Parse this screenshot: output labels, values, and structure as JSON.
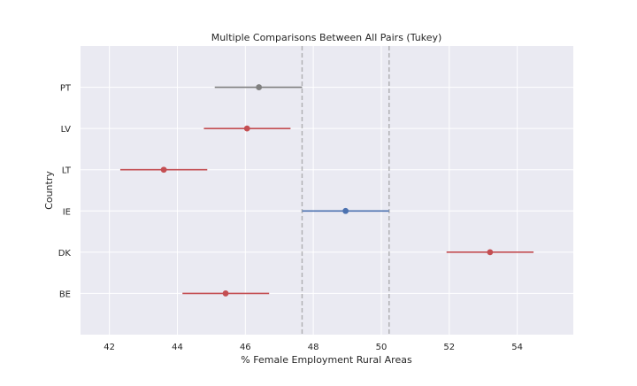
{
  "chart_data": {
    "type": "scatter",
    "title": "Multiple Comparisons Between All Pairs (Tukey)",
    "xlabel": "% Female Employment Rural Areas",
    "ylabel": "Country",
    "xlim": [
      41.15,
      55.65
    ],
    "x_ticks": [
      "42",
      "44",
      "46",
      "48",
      "50",
      "52",
      "54"
    ],
    "grid": true,
    "reference_lines": [
      47.67,
      50.23
    ],
    "colors": {
      "background": "#EAEAF2",
      "reference": "#9A9A9A",
      "selected": "#4C72B0",
      "significant": "#C44E52",
      "not_significant": "#808080"
    },
    "points": [
      {
        "label": "PT",
        "mean": 46.4,
        "low": 45.1,
        "high": 47.67,
        "status": "not_significant"
      },
      {
        "label": "LV",
        "mean": 46.05,
        "low": 44.78,
        "high": 47.33,
        "status": "significant"
      },
      {
        "label": "LT",
        "mean": 43.6,
        "low": 42.32,
        "high": 44.88,
        "status": "significant"
      },
      {
        "label": "IE",
        "mean": 48.95,
        "low": 47.67,
        "high": 50.23,
        "status": "selected"
      },
      {
        "label": "DK",
        "mean": 53.2,
        "low": 51.92,
        "high": 54.48,
        "status": "significant"
      },
      {
        "label": "BE",
        "mean": 45.42,
        "low": 44.15,
        "high": 46.7,
        "status": "significant"
      }
    ]
  }
}
